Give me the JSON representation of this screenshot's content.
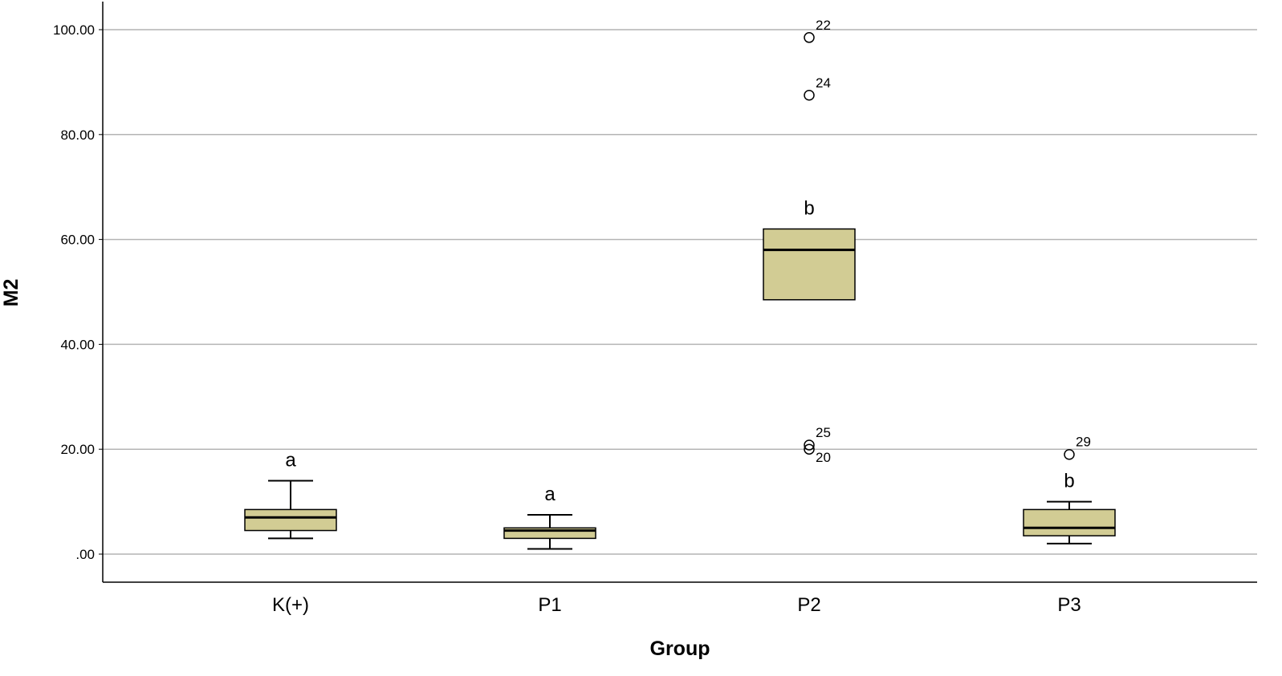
{
  "chart_data": {
    "type": "boxplot",
    "xlabel": "Group",
    "ylabel": "M2",
    "ylim": [
      -5.5,
      105
    ],
    "y_ticks": [
      0,
      20,
      40,
      60,
      80,
      100
    ],
    "y_tick_labels": [
      ".00",
      "20.00",
      "40.00",
      "60.00",
      "80.00",
      "100.00"
    ],
    "grid": "horizontal",
    "colors": {
      "box_fill": "#d2cc94",
      "box_stroke": "#000000",
      "grid": "#b4b4b4",
      "axis": "#000000"
    },
    "categories": [
      "K(+)",
      "P1",
      "P2",
      "P3"
    ],
    "boxes": [
      {
        "category": "K(+)",
        "whisker_low": 3.0,
        "q1": 4.5,
        "median": 7.0,
        "q3": 8.5,
        "whisker_high": 14.0,
        "significance": "a",
        "outliers": []
      },
      {
        "category": "P1",
        "whisker_low": 1.0,
        "q1": 3.0,
        "median": 4.5,
        "q3": 5.0,
        "whisker_high": 7.5,
        "significance": "a",
        "outliers": []
      },
      {
        "category": "P2",
        "whisker_low": 48.5,
        "q1": 48.5,
        "median": 58.0,
        "q3": 62.0,
        "whisker_high": 62.0,
        "significance": "b",
        "outliers": [
          {
            "value": 98.5,
            "label": "22"
          },
          {
            "value": 87.5,
            "label": "24"
          },
          {
            "value": 20.8,
            "label": "25"
          },
          {
            "value": 20.0,
            "label": "20"
          }
        ]
      },
      {
        "category": "P3",
        "whisker_low": 2.0,
        "q1": 3.5,
        "median": 5.0,
        "q3": 8.5,
        "whisker_high": 10.0,
        "significance": "b",
        "outliers": [
          {
            "value": 19.0,
            "label": "29"
          }
        ]
      }
    ]
  }
}
